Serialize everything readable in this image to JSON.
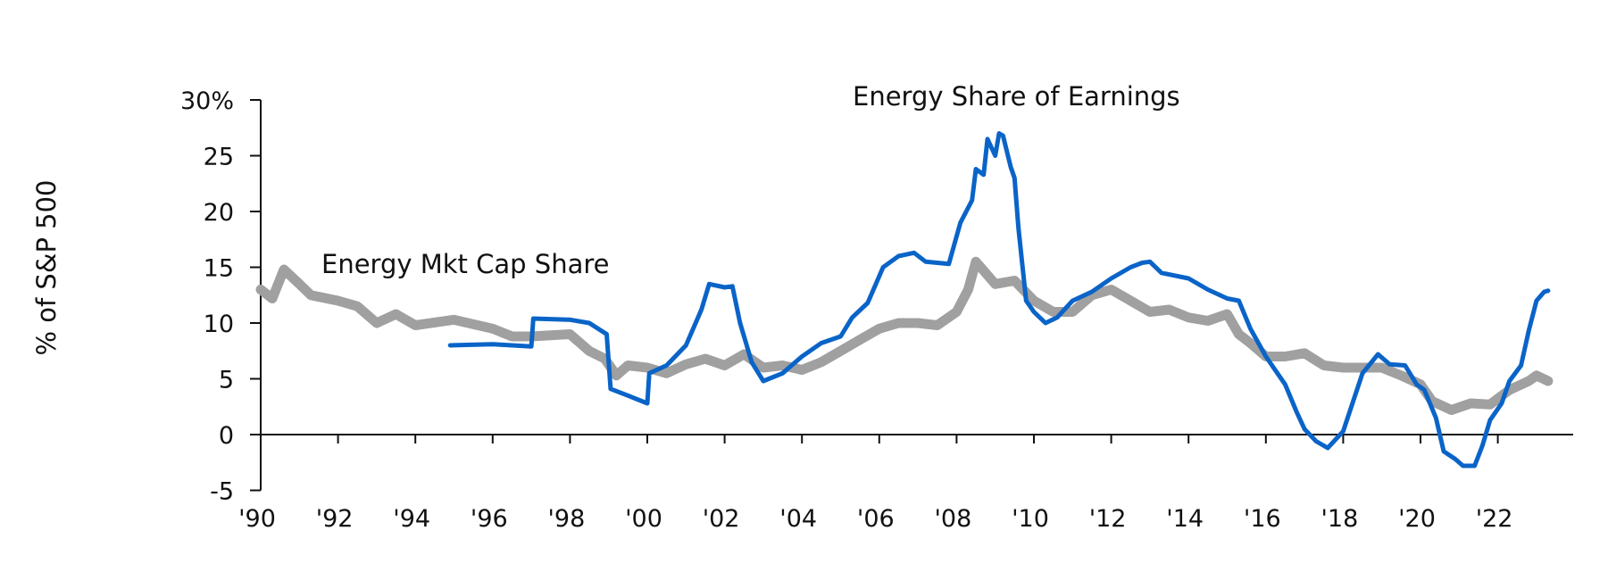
{
  "chart_data": {
    "type": "line",
    "title": "",
    "ylabel": "% of S&P 500",
    "xlabel": "",
    "ylim": [
      -5,
      30
    ],
    "xlim": [
      1990,
      2024
    ],
    "grid": false,
    "y_ticks": [
      -5,
      0,
      5,
      10,
      15,
      20,
      25,
      30
    ],
    "y_tick_labels": [
      "-5",
      "0",
      "5",
      "10",
      "15",
      "20",
      "25",
      "30%"
    ],
    "x_ticks": [
      1990,
      1992,
      1994,
      1996,
      1998,
      2000,
      2002,
      2004,
      2006,
      2008,
      2010,
      2012,
      2014,
      2016,
      2018,
      2020,
      2022
    ],
    "x_tick_labels": [
      "'90",
      "'92",
      "'94",
      "'96",
      "'98",
      "'00",
      "'02",
      "'04",
      "'06",
      "'08",
      "'10",
      "'12",
      "'14",
      "'16",
      "'18",
      "'20",
      "'22"
    ],
    "series": [
      {
        "name": "Energy Mkt Cap Share",
        "color": "#a0a0a0",
        "x": [
          1990,
          1990.3,
          1990.6,
          1991,
          1991.3,
          1992,
          1992.5,
          1993,
          1993.5,
          1994,
          1995,
          1996,
          1996.5,
          1997,
          1998,
          1998.5,
          1998.9,
          1999.2,
          1999.5,
          2000,
          2000.5,
          2001,
          2001.5,
          2002,
          2002.5,
          2003,
          2003.5,
          2004,
          2004.5,
          2005,
          2005.5,
          2006,
          2006.5,
          2007,
          2007.5,
          2008,
          2008.3,
          2008.5,
          2009,
          2009.5,
          2010,
          2010.5,
          2011,
          2011.5,
          2012,
          2012.5,
          2013,
          2013.5,
          2014,
          2014.5,
          2015,
          2015.3,
          2015.6,
          2016,
          2016.5,
          2017,
          2017.5,
          2018,
          2018.5,
          2019,
          2019.5,
          2020,
          2020.3,
          2020.8,
          2021.3,
          2021.8,
          2022.3,
          2022.8,
          2023,
          2023.3
        ],
        "y": [
          13,
          12.2,
          14.8,
          13.5,
          12.5,
          12,
          11.5,
          10,
          10.8,
          9.8,
          10.3,
          9.5,
          8.8,
          8.8,
          9,
          7.5,
          6.8,
          5.3,
          6.2,
          6,
          5.5,
          6.3,
          6.8,
          6.2,
          7.2,
          6,
          6.2,
          5.8,
          6.5,
          7.5,
          8.5,
          9.5,
          10,
          10,
          9.8,
          11,
          13,
          15.5,
          13.5,
          13.8,
          12,
          11,
          11,
          12.5,
          13,
          12,
          11,
          11.2,
          10.5,
          10.2,
          10.8,
          9,
          8.2,
          7,
          7,
          7.3,
          6.2,
          6,
          6,
          6,
          5.3,
          4.5,
          3,
          2.2,
          2.8,
          2.7,
          4,
          4.8,
          5.3,
          4.8
        ]
      },
      {
        "name": "Energy Share of Earnings",
        "color": "#0a64c8",
        "x": [
          1994.9,
          1996,
          1997,
          1997.05,
          1998,
          1998.5,
          1998.95,
          1999.05,
          1999.5,
          2000,
          2000.05,
          2000.5,
          2001,
          2001.4,
          2001.6,
          2002,
          2002.2,
          2002.4,
          2002.7,
          2003,
          2003.5,
          2004,
          2004.5,
          2005,
          2005.3,
          2005.7,
          2006.1,
          2006.5,
          2006.9,
          2007.2,
          2007.8,
          2008.1,
          2008.4,
          2008.5,
          2008.7,
          2008.8,
          2009,
          2009.1,
          2009.2,
          2009.4,
          2009.5,
          2009.6,
          2009.8,
          2010,
          2010.3,
          2010.6,
          2011,
          2011.5,
          2012,
          2012.5,
          2012.8,
          2013,
          2013.3,
          2014,
          2014.5,
          2015,
          2015.3,
          2015.6,
          2016,
          2016.5,
          2016.8,
          2017,
          2017.3,
          2017.6,
          2018,
          2018.5,
          2018.9,
          2019.2,
          2019.6,
          2019.9,
          2020.1,
          2020.4,
          2020.6,
          2020.9,
          2021.1,
          2021.4,
          2021.6,
          2021.8,
          2022.1,
          2022.3,
          2022.6,
          2022.8,
          2023,
          2023.2,
          2023.3
        ],
        "y": [
          8,
          8.1,
          7.9,
          10.4,
          10.3,
          10,
          9,
          4.1,
          3.5,
          2.8,
          5.5,
          6.2,
          8,
          11.2,
          13.5,
          13.2,
          13.3,
          10,
          6.5,
          4.8,
          5.5,
          7,
          8.2,
          8.8,
          10.5,
          11.8,
          15,
          16,
          16.3,
          15.5,
          15.3,
          19,
          21,
          23.8,
          23.3,
          26.5,
          25,
          27,
          26.8,
          24,
          23,
          18.5,
          12,
          11,
          10,
          10.5,
          12,
          12.8,
          14,
          15,
          15.4,
          15.5,
          14.5,
          14,
          13,
          12.2,
          12,
          9.5,
          7,
          4.5,
          2,
          0.5,
          -0.6,
          -1.2,
          0.3,
          5.5,
          7.2,
          6.3,
          6.2,
          4.5,
          4,
          1.5,
          -1.5,
          -2.2,
          -2.8,
          -2.8,
          -1,
          1.3,
          2.8,
          4.8,
          6.2,
          9.3,
          12,
          12.8,
          12.9
        ]
      }
    ],
    "annotations": [
      "Energy Share of Earnings",
      "Energy Mkt Cap Share"
    ]
  }
}
